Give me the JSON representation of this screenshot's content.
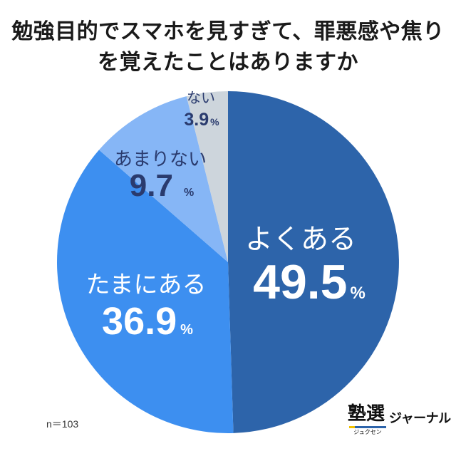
{
  "chart_data": {
    "type": "pie",
    "title": [
      "勉強目的でスマホを見すぎて、罪悪感や焦り",
      "を覚えたことはありますか"
    ],
    "categories": [
      "よくある",
      "たまにある",
      "あまりない",
      "ない"
    ],
    "values": [
      49.5,
      36.9,
      9.7,
      3.9
    ],
    "unit": "%",
    "colors": [
      "#2d64aa",
      "#3d8ff0",
      "#86b6f6",
      "#cdd5dc"
    ],
    "label_colors": [
      "#ffffff",
      "#ffffff",
      "#2a3b6e",
      "#2a3b6e"
    ]
  },
  "sample_note": "n＝103",
  "logo": {
    "mark": "塾選",
    "reading": "ジュクセン",
    "name": "ジャーナル",
    "bar_color": "#2d64aa",
    "accent_color": "#f2c200"
  }
}
